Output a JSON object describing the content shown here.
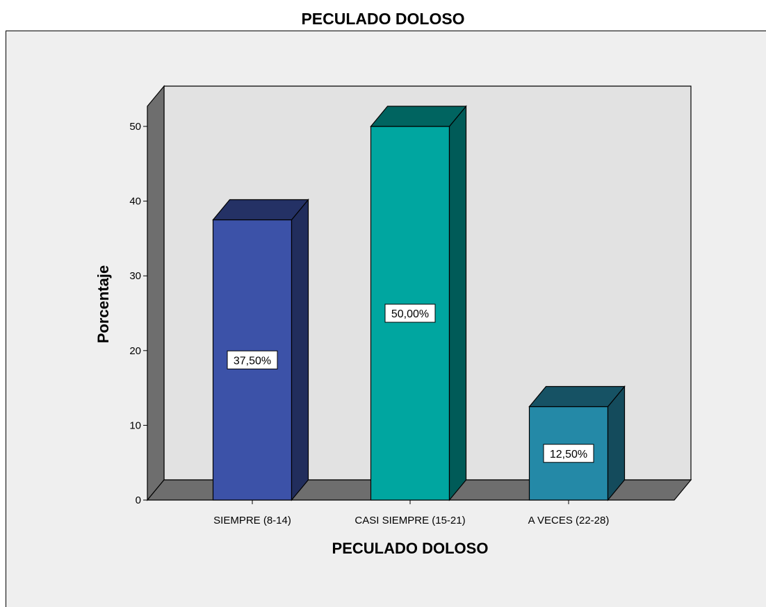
{
  "title": "PECULADO DOLOSO",
  "chart_data": {
    "type": "bar",
    "title": "PECULADO DOLOSO",
    "xlabel": "PECULADO DOLOSO",
    "ylabel": "Porcentaje",
    "categories": [
      "SIEMPRE (8-14)",
      "CASI SIEMPRE (15-21)",
      "A VECES (22-28)"
    ],
    "values": [
      37.5,
      50.0,
      12.5
    ],
    "data_labels": [
      "37,50%",
      "50,00%",
      "12,50%"
    ],
    "colors": [
      "#3c52a8",
      "#00a6a0",
      "#2489a7"
    ],
    "yticks": [
      0,
      10,
      20,
      30,
      40,
      50
    ],
    "ylim": [
      0,
      50
    ],
    "grid": false,
    "legend": "none",
    "style": "3d"
  }
}
